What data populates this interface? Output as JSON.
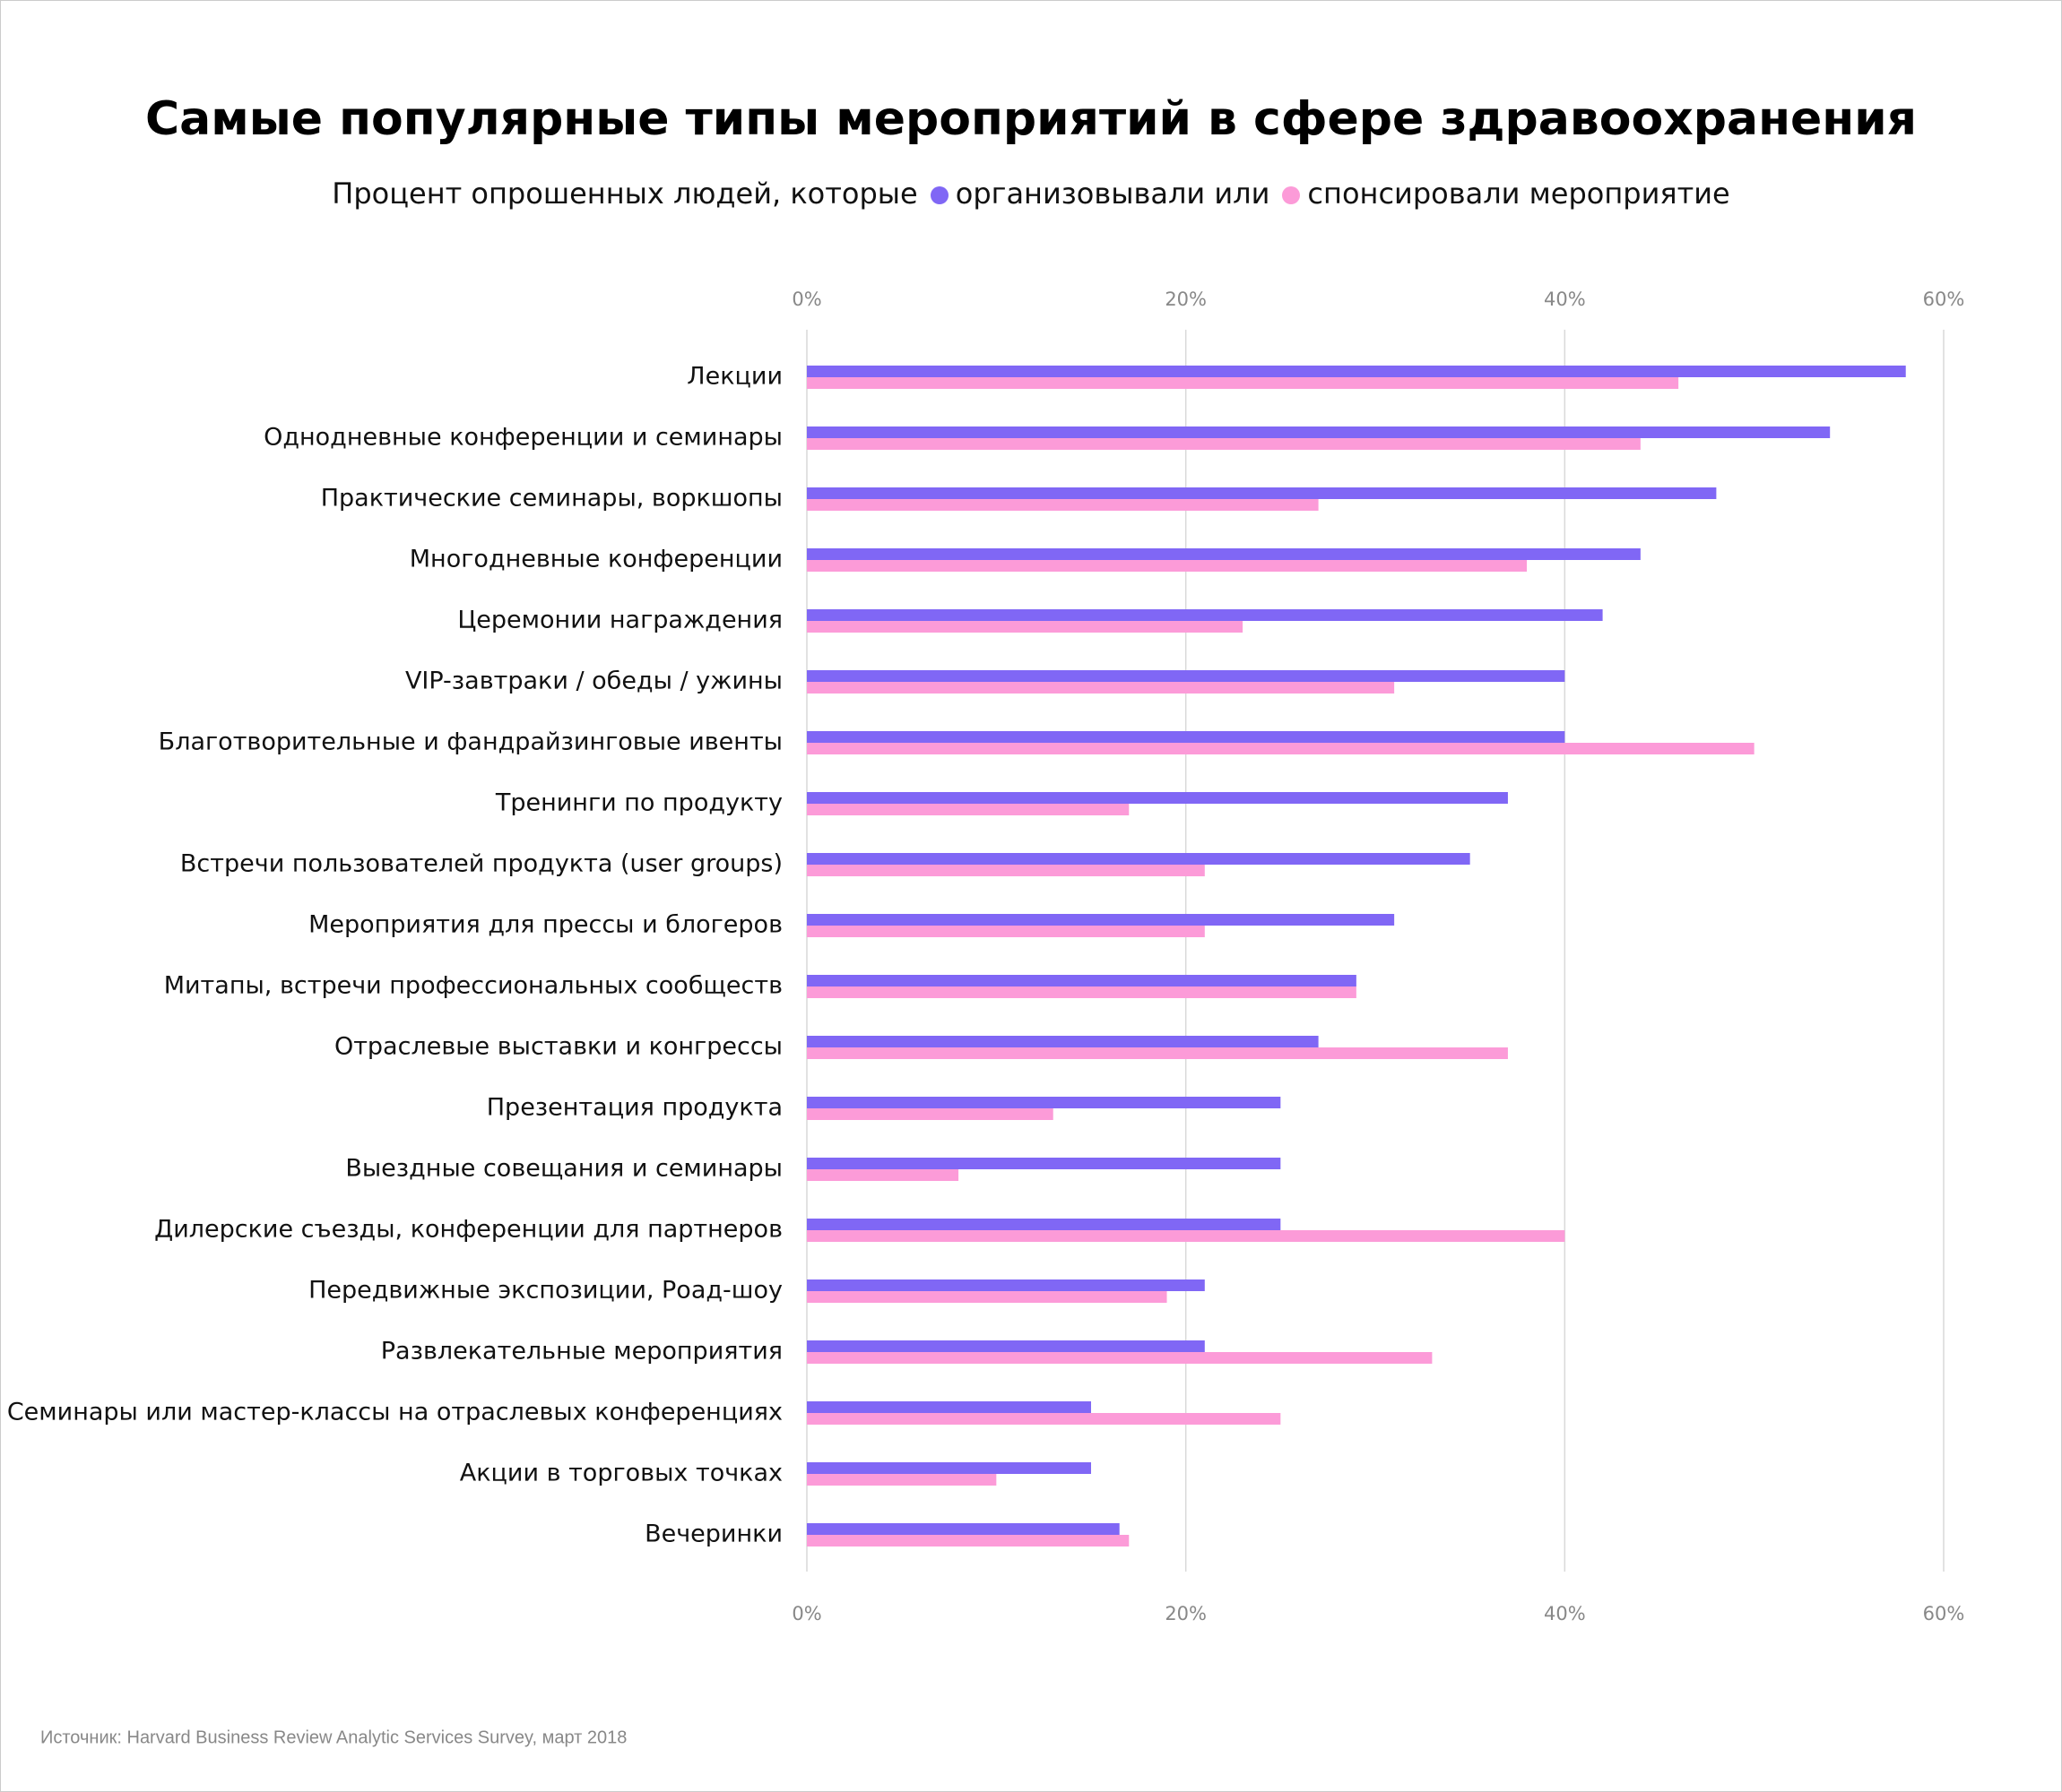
{
  "chart_data": {
    "type": "bar",
    "orientation": "horizontal",
    "title": "Самые популярные типы мероприятий в сфере здравоохранения",
    "subtitle": "Процент опрошенных людей, которые",
    "source": "Источник: Harvard Business Review Analytic Services Survey, март 2018",
    "categories": [
      "Лекции",
      "Однодневные конференции и семинары",
      "Практические семинары, воркшопы",
      "Многодневные конференции",
      "Церемонии награждения",
      "VIP-завтраки / обеды / ужины",
      "Благотворительные и фандрайзинговые ивенты",
      "Тренинги по продукту",
      "Встречи пользователей продукта (user groups)",
      "Мероприятия для прессы и блогеров",
      "Митапы, встречи профессиональных сообществ",
      "Отраслевые выставки и конгрессы",
      "Презентация продукта",
      "Выездные совещания и семинары",
      "Дилерские съезды, конференции для партнеров",
      "Передвижные экспозиции, Роад-шоу",
      "Развлекательные мероприятия",
      "Семинары или мастер-классы на отраслевых конференциях",
      "Акции в торговых точках",
      "Вечеринки"
    ],
    "series": [
      {
        "name": "организовывали или",
        "color": "#8067f5",
        "values": [
          58,
          54,
          48,
          44,
          42,
          40,
          40,
          37,
          35,
          31,
          29,
          27,
          25,
          25,
          25,
          21,
          21,
          15,
          15,
          16.5
        ]
      },
      {
        "name": "спонсировали мероприятие",
        "color": "#fc9bd8",
        "values": [
          46,
          44,
          27,
          38,
          23,
          31,
          50,
          17,
          21,
          21,
          29,
          37,
          13,
          8,
          40,
          19,
          33,
          25,
          10,
          17
        ]
      }
    ],
    "xlim": [
      0,
      60
    ],
    "xticks": [
      {
        "value": 0,
        "label": "0%"
      },
      {
        "value": 20,
        "label": "20%"
      },
      {
        "value": 40,
        "label": "40%"
      },
      {
        "value": 60,
        "label": "60%"
      }
    ],
    "grid": true
  }
}
